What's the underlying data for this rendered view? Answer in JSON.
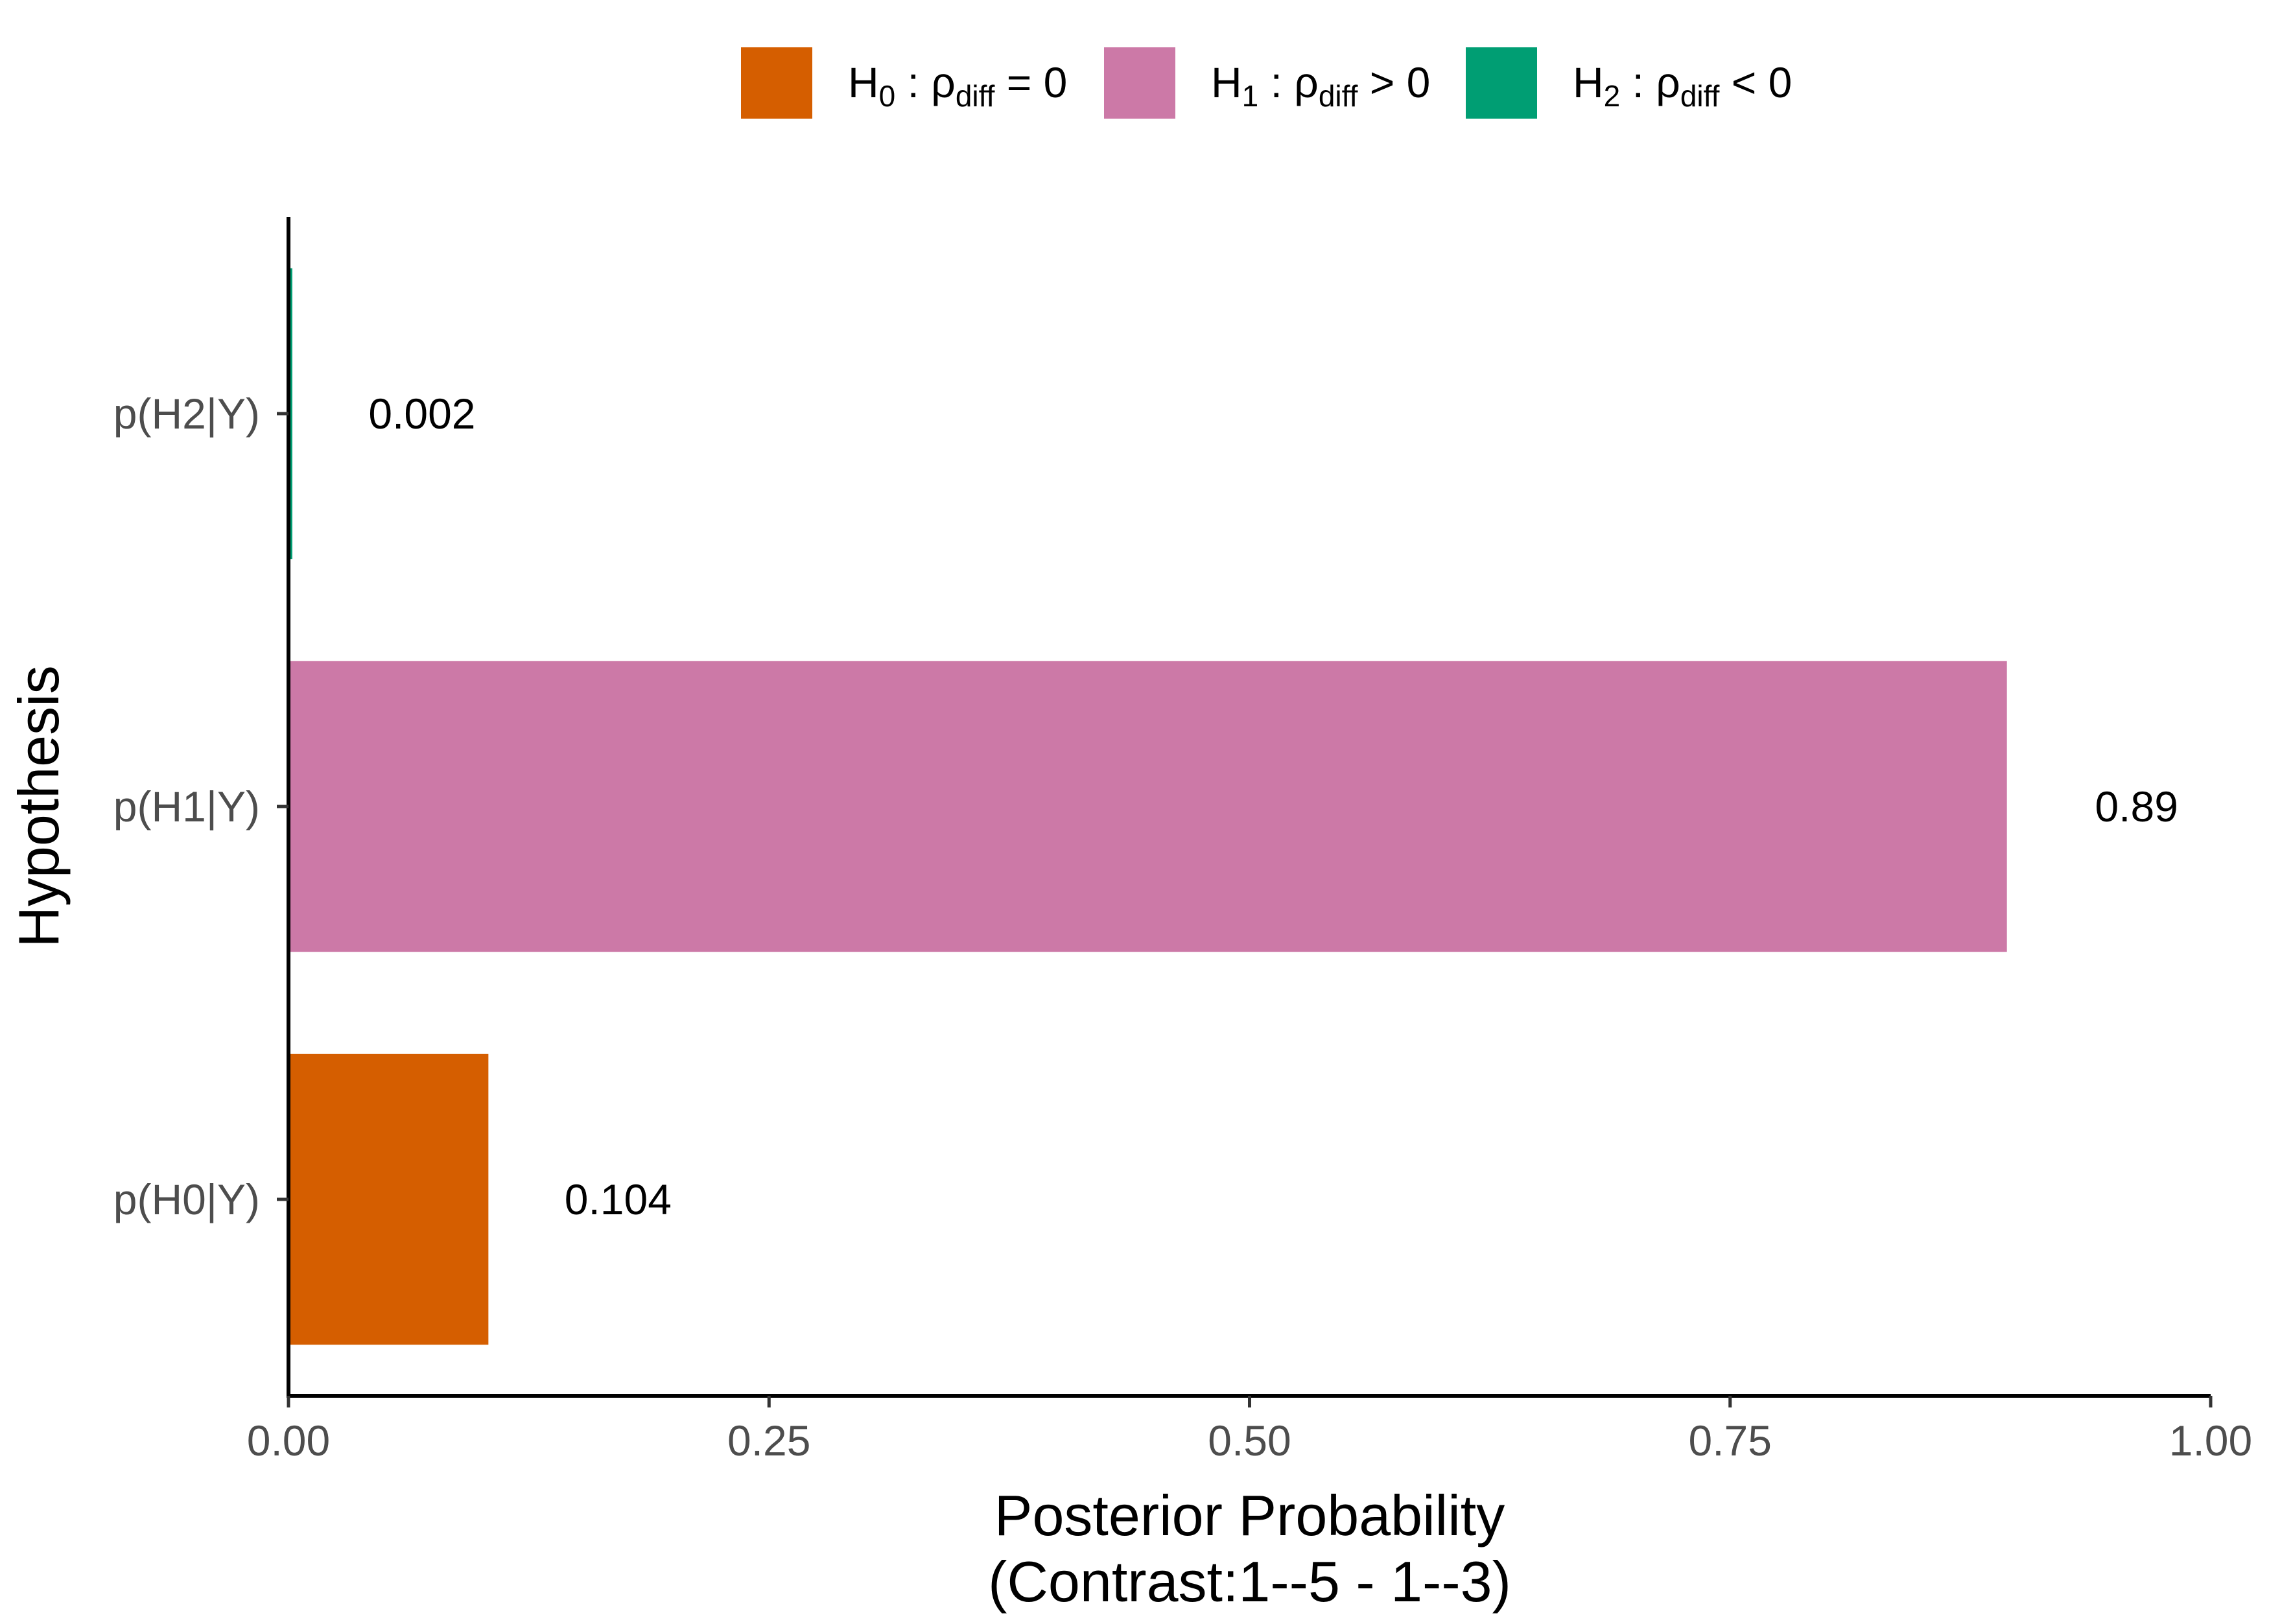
{
  "chart_data": {
    "type": "bar",
    "orientation": "horizontal",
    "categories": [
      "p(H0|Y)",
      "p(H1|Y)",
      "p(H2|Y)"
    ],
    "values": [
      0.104,
      0.894,
      0.002
    ],
    "data_labels": [
      "0.104",
      "0.89",
      "0.002"
    ],
    "colors": [
      "#d55e00",
      "#cc79a7",
      "#009e73"
    ],
    "xlabel_line1": "Posterior Probability",
    "xlabel_line2": "(Contrast:1--5 - 1--3)",
    "ylabel": "Hypothesis",
    "xlim": [
      0,
      1
    ],
    "xticks": [
      0,
      0.25,
      0.5,
      0.75,
      1
    ],
    "xtick_labels": [
      "0.00",
      "0.25",
      "0.50",
      "0.75",
      "1.00"
    ],
    "grid": false,
    "legend_position": "top",
    "legend": [
      {
        "H": "H",
        "sub": "0",
        "colon": " : ",
        "rho": "ρ",
        "rho_sub": "diff",
        "rel": " = 0",
        "color": "#d55e00"
      },
      {
        "H": "H",
        "sub": "1",
        "colon": " : ",
        "rho": "ρ",
        "rho_sub": "diff",
        "rel": " > 0",
        "color": "#cc79a7"
      },
      {
        "H": "H",
        "sub": "2",
        "colon": " : ",
        "rho": "ρ",
        "rho_sub": "diff",
        "rel": " < 0",
        "color": "#009e73"
      }
    ]
  }
}
